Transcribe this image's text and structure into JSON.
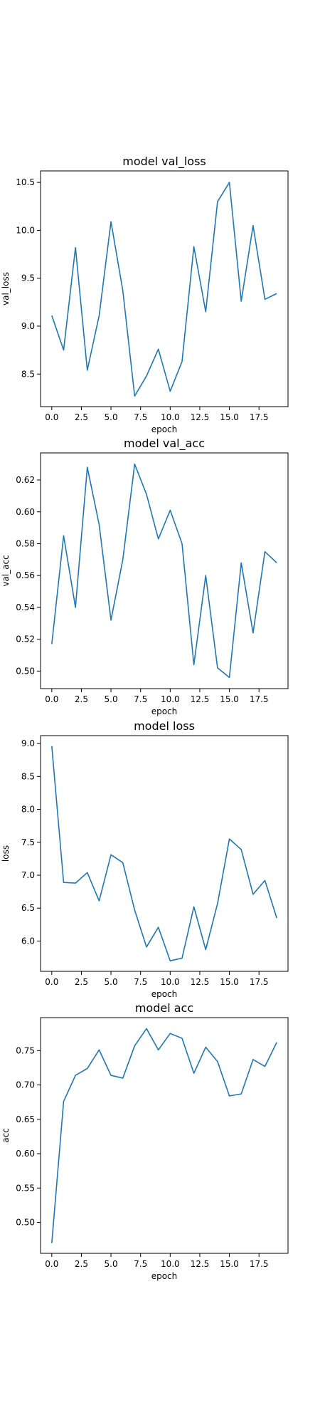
{
  "colors": {
    "series": "#1f77b4"
  },
  "chart_data": [
    {
      "type": "line",
      "title": "model val_loss",
      "xlabel": "epoch",
      "ylabel": "val_loss",
      "xlim": [
        -0.95,
        19.95
      ],
      "ylim": [
        8.16,
        10.62
      ],
      "x": [
        0,
        1,
        2,
        3,
        4,
        5,
        6,
        7,
        8,
        9,
        10,
        11,
        12,
        13,
        14,
        15,
        16,
        17,
        18,
        19
      ],
      "values": [
        9.11,
        8.75,
        9.82,
        8.54,
        9.11,
        10.09,
        9.37,
        8.27,
        8.48,
        8.76,
        8.32,
        8.63,
        9.83,
        9.15,
        10.3,
        10.5,
        9.26,
        10.05,
        9.28,
        9.34
      ],
      "xticks": [
        0,
        2.5,
        5,
        7.5,
        10,
        12.5,
        15,
        17.5
      ],
      "xtick_labels": [
        "0.0",
        "2.5",
        "5.0",
        "7.5",
        "10.0",
        "12.5",
        "15.0",
        "17.5"
      ],
      "yticks": [
        8.5,
        9.0,
        9.5,
        10.0,
        10.5
      ],
      "ytick_labels": [
        "8.5",
        "9.0",
        "9.5",
        "10.0",
        "10.5"
      ]
    },
    {
      "type": "line",
      "title": "model val_acc",
      "xlabel": "epoch",
      "ylabel": "val_acc",
      "xlim": [
        -0.95,
        19.95
      ],
      "ylim": [
        0.489,
        0.637
      ],
      "x": [
        0,
        1,
        2,
        3,
        4,
        5,
        6,
        7,
        8,
        9,
        10,
        11,
        12,
        13,
        14,
        15,
        16,
        17,
        18,
        19
      ],
      "values": [
        0.517,
        0.585,
        0.54,
        0.628,
        0.592,
        0.532,
        0.57,
        0.63,
        0.611,
        0.583,
        0.601,
        0.58,
        0.504,
        0.56,
        0.502,
        0.496,
        0.568,
        0.524,
        0.575,
        0.568
      ],
      "xticks": [
        0,
        2.5,
        5,
        7.5,
        10,
        12.5,
        15,
        17.5
      ],
      "xtick_labels": [
        "0.0",
        "2.5",
        "5.0",
        "7.5",
        "10.0",
        "12.5",
        "15.0",
        "17.5"
      ],
      "yticks": [
        0.5,
        0.52,
        0.54,
        0.56,
        0.58,
        0.6,
        0.62
      ],
      "ytick_labels": [
        "0.50",
        "0.52",
        "0.54",
        "0.56",
        "0.58",
        "0.60",
        "0.62"
      ]
    },
    {
      "type": "line",
      "title": "model loss",
      "xlabel": "epoch",
      "ylabel": "loss",
      "xlim": [
        -0.95,
        19.95
      ],
      "ylim": [
        5.54,
        9.12
      ],
      "x": [
        0,
        1,
        2,
        3,
        4,
        5,
        6,
        7,
        8,
        9,
        10,
        11,
        12,
        13,
        14,
        15,
        16,
        17,
        18,
        19
      ],
      "values": [
        8.96,
        6.89,
        6.88,
        7.04,
        6.61,
        7.31,
        7.19,
        6.47,
        5.91,
        6.21,
        5.7,
        5.74,
        6.52,
        5.87,
        6.57,
        7.55,
        7.39,
        6.71,
        6.92,
        6.35
      ],
      "xticks": [
        0,
        2.5,
        5,
        7.5,
        10,
        12.5,
        15,
        17.5
      ],
      "xtick_labels": [
        "0.0",
        "2.5",
        "5.0",
        "7.5",
        "10.0",
        "12.5",
        "15.0",
        "17.5"
      ],
      "yticks": [
        6.0,
        6.5,
        7.0,
        7.5,
        8.0,
        8.5,
        9.0
      ],
      "ytick_labels": [
        "6.0",
        "6.5",
        "7.0",
        "7.5",
        "8.0",
        "8.5",
        "9.0"
      ]
    },
    {
      "type": "line",
      "title": "model acc",
      "xlabel": "epoch",
      "ylabel": "acc",
      "xlim": [
        -0.95,
        19.95
      ],
      "ylim": [
        0.455,
        0.798
      ],
      "x": [
        0,
        1,
        2,
        3,
        4,
        5,
        6,
        7,
        8,
        9,
        10,
        11,
        12,
        13,
        14,
        15,
        16,
        17,
        18,
        19
      ],
      "values": [
        0.47,
        0.676,
        0.714,
        0.724,
        0.751,
        0.714,
        0.71,
        0.757,
        0.782,
        0.751,
        0.775,
        0.768,
        0.717,
        0.755,
        0.734,
        0.684,
        0.687,
        0.737,
        0.727,
        0.762
      ],
      "xticks": [
        0,
        2.5,
        5,
        7.5,
        10,
        12.5,
        15,
        17.5
      ],
      "xtick_labels": [
        "0.0",
        "2.5",
        "5.0",
        "7.5",
        "10.0",
        "12.5",
        "15.0",
        "17.5"
      ],
      "yticks": [
        0.5,
        0.55,
        0.6,
        0.65,
        0.7,
        0.75
      ],
      "ytick_labels": [
        "0.50",
        "0.55",
        "0.60",
        "0.65",
        "0.70",
        "0.75"
      ]
    }
  ]
}
